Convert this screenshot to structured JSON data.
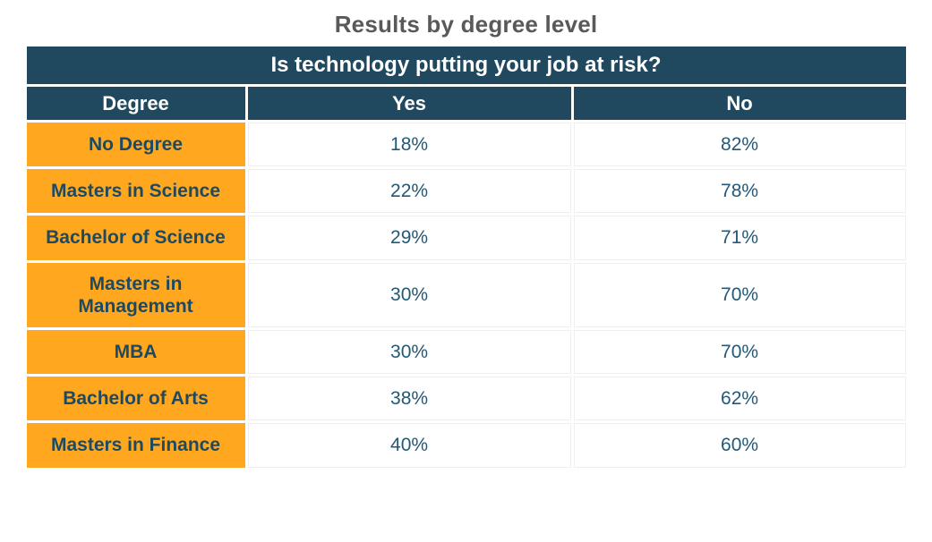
{
  "page": {
    "title": "Results by degree level"
  },
  "table": {
    "question": "Is technology putting your job at risk?",
    "columns": {
      "degree": "Degree",
      "yes": "Yes",
      "no": "No"
    },
    "rows": [
      {
        "degree": "No Degree",
        "yes": "18%",
        "no": "82%"
      },
      {
        "degree": "Masters in Science",
        "yes": "22%",
        "no": "78%"
      },
      {
        "degree": "Bachelor of Science",
        "yes": "29%",
        "no": "71%"
      },
      {
        "degree": "Masters in Management",
        "yes": "30%",
        "no": "70%"
      },
      {
        "degree": "MBA",
        "yes": "30%",
        "no": "70%"
      },
      {
        "degree": "Bachelor of Arts",
        "yes": "38%",
        "no": "62%"
      },
      {
        "degree": "Masters in Finance",
        "yes": "40%",
        "no": "60%"
      }
    ]
  },
  "colors": {
    "header_bg": "#20485F",
    "header_text": "#FFFFFF",
    "degree_cell_bg": "#FFA81F",
    "degree_cell_text": "#1E4A61",
    "value_text": "#235877",
    "title_text": "#58595B",
    "cell_border": "#EFEFEF"
  },
  "chart_data": {
    "type": "table",
    "title": "Results by degree level",
    "subtitle": "Is technology putting your job at risk?",
    "columns": [
      "Degree",
      "Yes",
      "No"
    ],
    "categories": [
      "No Degree",
      "Masters in Science",
      "Bachelor of Science",
      "Masters in Management",
      "MBA",
      "Bachelor of Arts",
      "Masters in Finance"
    ],
    "series": [
      {
        "name": "Yes",
        "values": [
          18,
          22,
          29,
          30,
          30,
          38,
          40
        ]
      },
      {
        "name": "No",
        "values": [
          82,
          78,
          71,
          70,
          70,
          62,
          60
        ]
      }
    ],
    "unit": "%"
  }
}
